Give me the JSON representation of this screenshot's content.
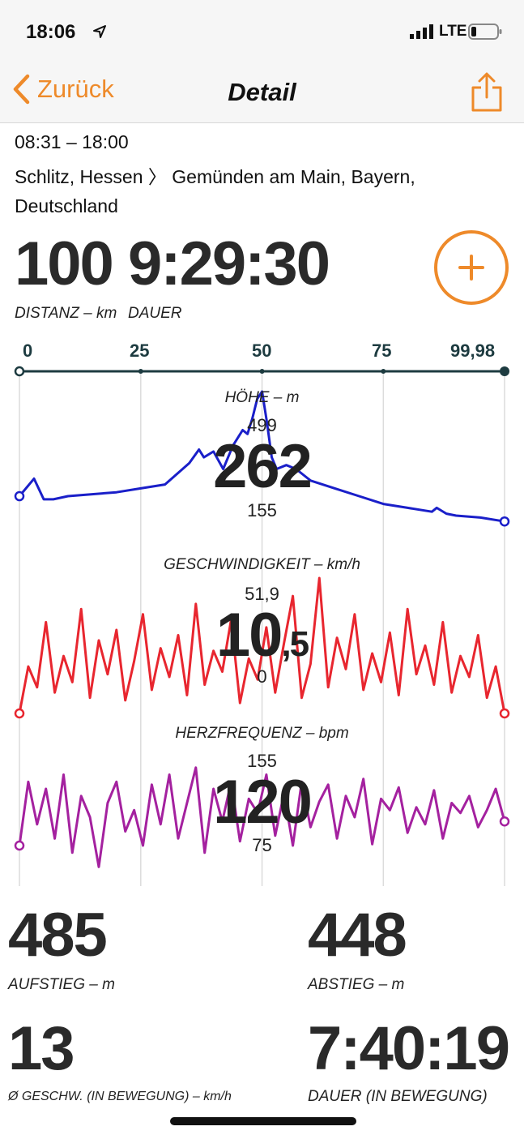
{
  "status": {
    "time": "18:06",
    "network": "LTE"
  },
  "nav": {
    "back_label": "Zurück",
    "title": "Detail"
  },
  "trip": {
    "time_range": "08:31 – 18:00",
    "route": "Schlitz, Hessen 〉 Gemünden am Main, Bayern, Deutschland"
  },
  "summary": {
    "distance_value": "100",
    "distance_label": "DISTANZ – km",
    "duration_value": "9:29:30",
    "duration_label": "DAUER"
  },
  "distance_axis": {
    "ticks": [
      "0",
      "25",
      "50",
      "75",
      "99,98"
    ],
    "min": 0,
    "max": 99.98
  },
  "colors": {
    "accent": "#ee8a2a",
    "elevation": "#1a1fc9",
    "speed": "#e8262f",
    "heart": "#a4219f",
    "axis": "#1d3b40"
  },
  "elevation": {
    "title": "HÖHE – m",
    "max": "499",
    "current": "262",
    "min": "155"
  },
  "speed": {
    "title": "GESCHWINDIGKEIT – km/h",
    "max": "51,9",
    "current_int": "10",
    "current_dec": ",5",
    "min": "0"
  },
  "heart": {
    "title": "HERZFREQUENZ – bpm",
    "max": "155",
    "current": "120",
    "min": "75"
  },
  "stats": {
    "ascent_value": "485",
    "ascent_label": "AUFSTIEG – m",
    "descent_value": "448",
    "descent_label": "ABSTIEG – m",
    "avg_speed_value": "13",
    "avg_speed_label": "Ø GESCHW. (IN BEWEGUNG) – km/h",
    "moving_time_value": "7:40:19",
    "moving_time_label": "DAUER (IN BEWEGUNG)"
  },
  "chart_data": [
    {
      "type": "line",
      "title": "HÖHE – m",
      "xlabel": "",
      "ylabel": "",
      "x_ticks": [
        "0",
        "25",
        "50",
        "75",
        "99,98"
      ],
      "ylim": [
        155,
        499
      ],
      "x": [
        0,
        3,
        5,
        7,
        10,
        15,
        20,
        25,
        30,
        35,
        37,
        38,
        40,
        42,
        44,
        46,
        47,
        48,
        49,
        50,
        51,
        52,
        53,
        55,
        57,
        60,
        65,
        70,
        75,
        80,
        85,
        86,
        88,
        90,
        95,
        99.98
      ],
      "series": [
        {
          "values": [
            230,
            275,
            222,
            222,
            230,
            235,
            240,
            250,
            260,
            315,
            350,
            330,
            345,
            300,
            360,
            400,
            390,
            430,
            480,
            499,
            420,
            330,
            300,
            310,
            300,
            270,
            250,
            230,
            210,
            200,
            190,
            200,
            185,
            180,
            175,
            165
          ]
        }
      ]
    },
    {
      "type": "line",
      "title": "GESCHWINDIGKEIT – km/h",
      "xlabel": "",
      "ylabel": "",
      "x_ticks": [
        "0",
        "25",
        "50",
        "75",
        "99,98"
      ],
      "ylim": [
        0,
        51.9
      ],
      "series": [
        {
          "values": [
            0,
            18,
            10,
            35,
            8,
            22,
            12,
            40,
            6,
            28,
            15,
            32,
            5,
            20,
            38,
            9,
            25,
            14,
            30,
            7,
            42,
            11,
            24,
            16,
            36,
            4,
            21,
            13,
            33,
            8,
            27,
            45,
            6,
            19,
            51.9,
            10,
            29,
            17,
            38,
            9,
            23,
            12,
            31,
            7,
            40,
            15,
            26,
            11,
            35,
            8,
            22,
            14,
            30,
            6,
            18,
            0
          ]
        }
      ]
    },
    {
      "type": "line",
      "title": "HERZFREQUENZ – bpm",
      "xlabel": "",
      "ylabel": "",
      "x_ticks": [
        "0",
        "25",
        "50",
        "75",
        "99,98"
      ],
      "ylim": [
        75,
        155
      ],
      "series": [
        {
          "values": [
            95,
            140,
            110,
            135,
            100,
            145,
            90,
            130,
            115,
            80,
            125,
            140,
            105,
            120,
            95,
            138,
            110,
            145,
            100,
            125,
            150,
            90,
            135,
            112,
            140,
            98,
            128,
            118,
            145,
            102,
            132,
            95,
            140,
            108,
            126,
            138,
            100,
            130,
            115,
            142,
            96,
            128,
            120,
            136,
            104,
            122,
            110,
            134,
            100,
            125,
            118,
            130,
            108,
            120,
            135,
            112
          ]
        }
      ]
    }
  ]
}
